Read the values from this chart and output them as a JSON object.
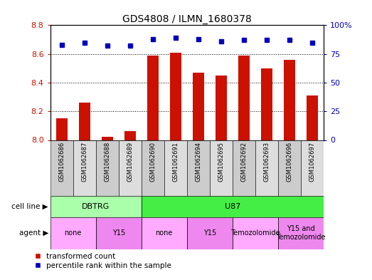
{
  "title": "GDS4808 / ILMN_1680378",
  "samples": [
    "GSM1062686",
    "GSM1062687",
    "GSM1062688",
    "GSM1062689",
    "GSM1062690",
    "GSM1062691",
    "GSM1062694",
    "GSM1062695",
    "GSM1062692",
    "GSM1062693",
    "GSM1062696",
    "GSM1062697"
  ],
  "bar_values": [
    8.15,
    8.26,
    8.02,
    8.06,
    8.59,
    8.61,
    8.47,
    8.45,
    8.59,
    8.5,
    8.56,
    8.31
  ],
  "percentile_values": [
    83,
    85,
    82,
    82,
    88,
    89,
    88,
    86,
    87,
    87,
    87,
    85
  ],
  "bar_color": "#cc1100",
  "dot_color": "#0000bb",
  "ylim_left": [
    8.0,
    8.8
  ],
  "ylim_right": [
    0,
    100
  ],
  "yticks_left": [
    8.0,
    8.2,
    8.4,
    8.6,
    8.8
  ],
  "yticks_right": [
    0,
    25,
    50,
    75,
    100
  ],
  "ytick_right_labels": [
    "0",
    "25",
    "50",
    "75",
    "100%"
  ],
  "grid_lines": [
    8.2,
    8.4,
    8.6
  ],
  "cell_line_groups": [
    {
      "label": "DBTRG",
      "start": 0,
      "end": 3,
      "color": "#aaffaa"
    },
    {
      "label": "U87",
      "start": 4,
      "end": 11,
      "color": "#44ee44"
    }
  ],
  "agent_groups": [
    {
      "label": "none",
      "start": 0,
      "end": 1,
      "color": "#ffaaff"
    },
    {
      "label": "Y15",
      "start": 2,
      "end": 3,
      "color": "#ee88ee"
    },
    {
      "label": "none",
      "start": 4,
      "end": 5,
      "color": "#ffaaff"
    },
    {
      "label": "Y15",
      "start": 6,
      "end": 7,
      "color": "#ee88ee"
    },
    {
      "label": "Temozolomide",
      "start": 8,
      "end": 9,
      "color": "#ffaaff"
    },
    {
      "label": "Y15 and\nTemozolomide",
      "start": 10,
      "end": 11,
      "color": "#ee88ee"
    }
  ],
  "legend_labels": [
    "transformed count",
    "percentile rank within the sample"
  ],
  "legend_colors": [
    "#cc1100",
    "#0000bb"
  ],
  "bar_width": 0.5,
  "sample_bg_color": "#cccccc",
  "sample_bg_alt": "#dddddd",
  "ylabel_left_color": "#cc1100",
  "ylabel_right_color": "#0000bb"
}
